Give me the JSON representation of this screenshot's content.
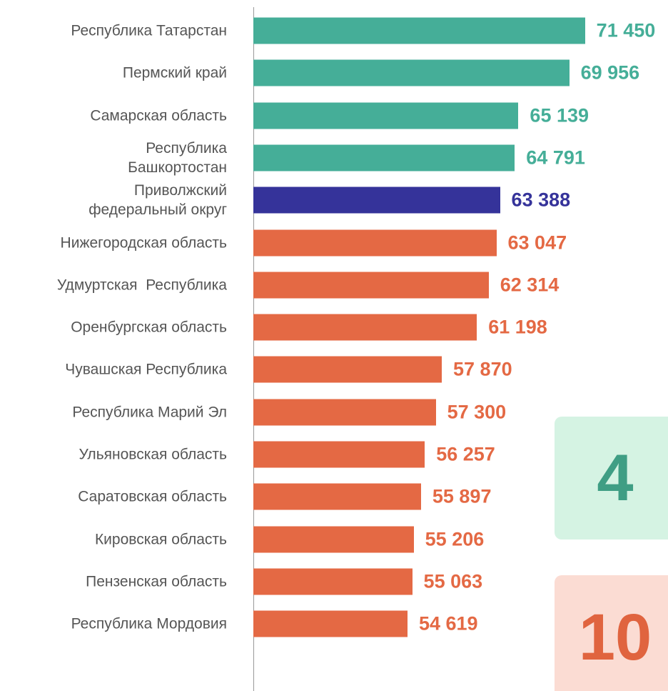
{
  "chart_data": {
    "type": "bar",
    "orientation": "horizontal",
    "categories": [
      "Республика Татарстан",
      "Пермский край",
      "Самарская область",
      "Республика\nБашкортостан",
      "Приволжский\nфедеральный округ",
      "Нижегородская область",
      "Удмуртская  Республика",
      "Оренбургская область",
      "Чувашская Республика",
      "Республика Марий Эл",
      "Ульяновская область",
      "Саратовская область",
      "Кировская область",
      "Пензенская область",
      "Республика Мордовия"
    ],
    "values": [
      71450,
      69956,
      65139,
      64791,
      63388,
      63047,
      62314,
      61198,
      57870,
      57300,
      56257,
      55897,
      55206,
      55063,
      54619
    ],
    "value_labels": [
      "71 450",
      "69 956",
      "65 139",
      "64 791",
      "63 388",
      "63 047",
      "62 314",
      "61 198",
      "57 870",
      "57 300",
      "56 257",
      "55 897",
      "55 206",
      "55 063",
      "54 619"
    ],
    "colors": [
      "#45ae98",
      "#45ae98",
      "#45ae98",
      "#45ae98",
      "#35339a",
      "#e46944",
      "#e46944",
      "#e46944",
      "#e46944",
      "#e46944",
      "#e46944",
      "#e46944",
      "#e46944",
      "#e46944",
      "#e46944"
    ],
    "xlim": [
      40000,
      80000
    ],
    "badges": [
      {
        "label": "4",
        "color": "#3f9e84",
        "background": "#d5f3e3"
      },
      {
        "label": "10",
        "color": "#e0643f",
        "background": "#fbdcd3"
      }
    ]
  }
}
